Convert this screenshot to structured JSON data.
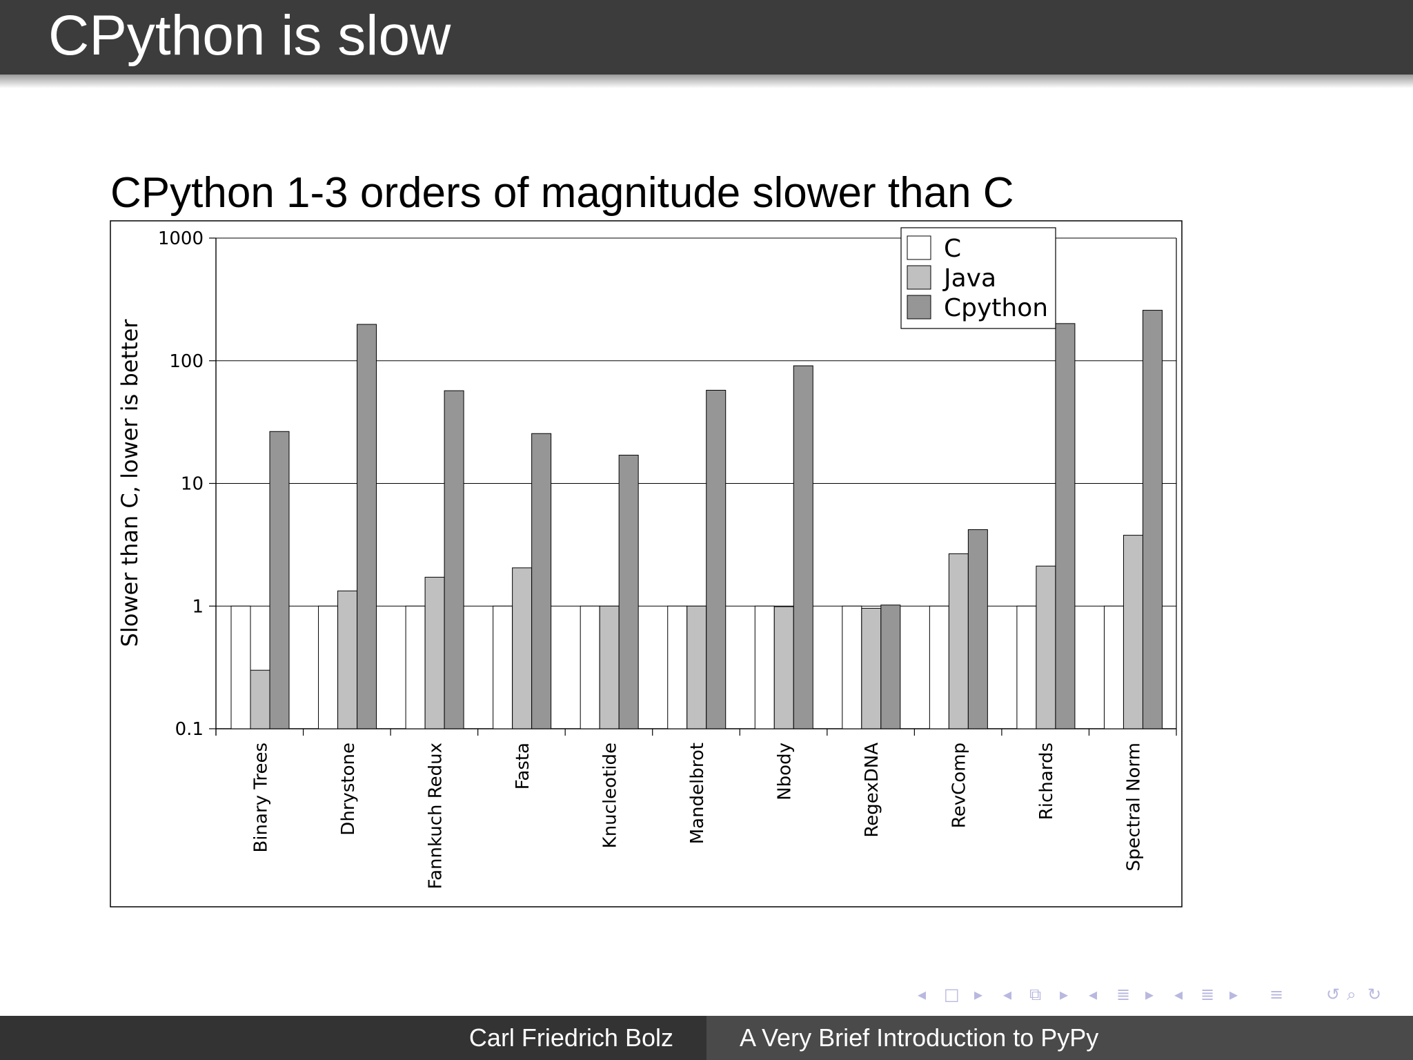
{
  "slide": {
    "title": "CPython is slow",
    "subtitle": "CPython 1-3 orders of magnitude slower than C"
  },
  "footer": {
    "author": "Carl Friedrich Bolz",
    "talk_title": "A Very Brief Introduction to PyPy"
  },
  "nav_icons": [
    "arrow-left-icon",
    "frame-icon",
    "arrow-right-icon",
    "arrow-left-icon",
    "subsection-icon",
    "arrow-right-icon",
    "arrow-left-icon",
    "section-icon",
    "arrow-right-icon",
    "arrow-left-icon",
    "document-icon",
    "arrow-right-icon",
    "align-icon",
    "undo-icon",
    "search-icon",
    "redo-icon"
  ],
  "colors": {
    "title_bar": "#3c3c3c",
    "footer_left": "#333333",
    "footer_right": "#4a4a4a",
    "nav": "#b8b8e0"
  },
  "chart_data": {
    "type": "bar",
    "title": "",
    "xlabel": "",
    "ylabel": "Slower than C, lower is better",
    "yscale": "log",
    "ylim": [
      0.1,
      1000
    ],
    "yticks": [
      "0.1",
      "1",
      "10",
      "100",
      "1000"
    ],
    "grid": true,
    "legend_position": "top-right",
    "categories": [
      "Binary Trees",
      "Dhrystone",
      "Fannkuch Redux",
      "Fasta",
      "Knucleotide",
      "Mandelbrot",
      "Nbody",
      "RegexDNA",
      "RevComp",
      "Richards",
      "Spectral Norm"
    ],
    "series": [
      {
        "name": "C",
        "color": "#ffffff",
        "values": [
          1,
          1,
          1,
          1,
          1,
          1,
          1,
          1,
          1,
          1,
          1
        ]
      },
      {
        "name": "Java",
        "color": "#c0c0c0",
        "values": [
          0.3,
          1.33,
          1.72,
          2.05,
          1.0,
          1.0,
          0.99,
          0.96,
          2.67,
          2.12,
          3.78
        ]
      },
      {
        "name": "Cpython",
        "color": "#969696",
        "values": [
          26.5,
          198,
          57,
          25.5,
          17,
          57.5,
          91,
          1.02,
          4.2,
          201,
          258
        ]
      }
    ]
  }
}
